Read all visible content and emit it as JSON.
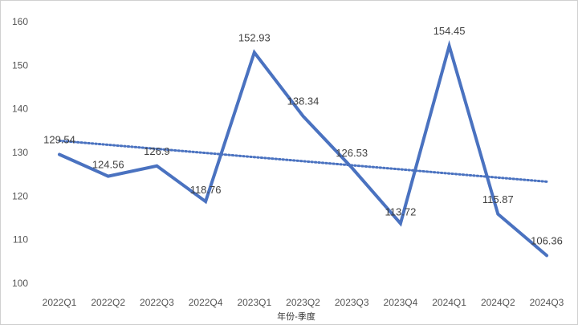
{
  "chart_data": {
    "type": "line",
    "categories": [
      "2022Q1",
      "2022Q2",
      "2022Q3",
      "2022Q4",
      "2023Q1",
      "2023Q2",
      "2023Q3",
      "2023Q4",
      "2024Q1",
      "2024Q2",
      "2024Q3"
    ],
    "series": [
      {
        "values": [
          129.54,
          124.56,
          126.9,
          118.76,
          152.93,
          138.34,
          126.53,
          113.72,
          154.45,
          115.87,
          106.36
        ],
        "labels": [
          "129.54",
          "124.56",
          "126.9",
          "118.76",
          "152.93",
          "138.34",
          "126.53",
          "113.72",
          "154.45",
          "115.87",
          "106.36"
        ],
        "color": "#4a72c0"
      }
    ],
    "trendline": {
      "style": "dotted",
      "color": "#4a72c0",
      "start": 132.7,
      "end": 123.3
    },
    "xlabel": "年份-季度",
    "ylabel": "",
    "ylim": [
      100,
      160
    ],
    "yticks": [
      100,
      110,
      120,
      130,
      140,
      150,
      160
    ],
    "grid": false,
    "legend": "none"
  }
}
